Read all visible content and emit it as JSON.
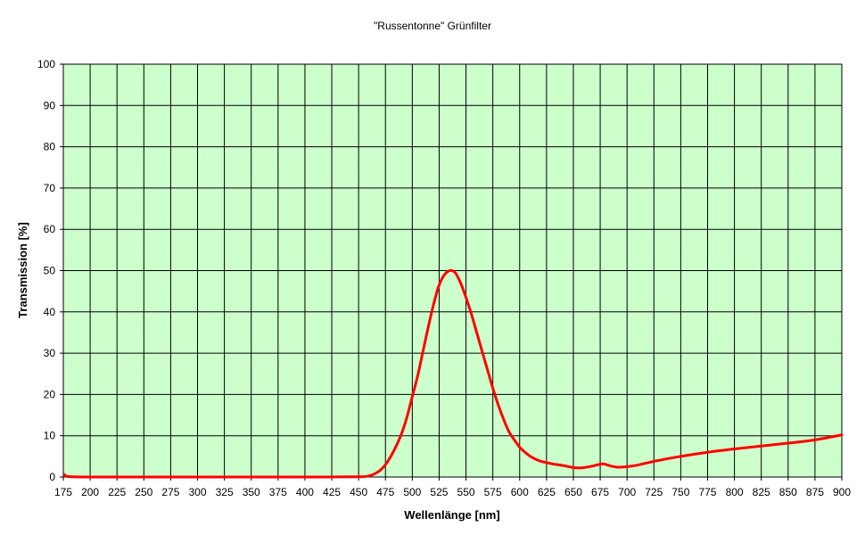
{
  "chart_data": {
    "type": "line",
    "title": "\"Russentonne\" Grünfilter",
    "xlabel": "Wellenlänge [nm]",
    "ylabel": "Transmission [%]",
    "xlim": [
      175,
      900
    ],
    "ylim": [
      0,
      100
    ],
    "x_ticks": [
      "175",
      "200",
      "225",
      "250",
      "275",
      "300",
      "325",
      "350",
      "375",
      "400",
      "425",
      "450",
      "475",
      "500",
      "525",
      "550",
      "575",
      "600",
      "625",
      "650",
      "675",
      "700",
      "725",
      "750",
      "775",
      "800",
      "825",
      "850",
      "875",
      "900"
    ],
    "y_ticks": [
      "0",
      "10",
      "20",
      "30",
      "40",
      "50",
      "60",
      "70",
      "80",
      "90",
      "100"
    ],
    "grid": true,
    "legend": "none",
    "colors": {
      "plot_background": "#ccffcc",
      "grid": "#000000",
      "series": "#ff0000"
    },
    "series": [
      {
        "x": [
          176,
          180,
          200,
          250,
          300,
          350,
          400,
          450,
          460,
          465,
          470,
          475,
          480,
          485,
          490,
          495,
          500,
          505,
          510,
          515,
          520,
          525,
          530,
          535,
          540,
          545,
          550,
          555,
          560,
          565,
          570,
          575,
          580,
          585,
          590,
          595,
          600,
          605,
          610,
          615,
          620,
          625,
          630,
          640,
          650,
          655,
          660,
          665,
          670,
          675,
          678,
          682,
          686,
          690,
          695,
          700,
          710,
          725,
          750,
          775,
          800,
          825,
          850,
          875,
          900
        ],
        "values": [
          0.6,
          0.1,
          0,
          0,
          0,
          0,
          0,
          0.05,
          0.3,
          0.8,
          1.6,
          3.0,
          5.0,
          7.5,
          10.5,
          14.5,
          19.5,
          24.5,
          30.5,
          36.5,
          42.0,
          46.5,
          49.0,
          50.0,
          49.5,
          47.0,
          43.5,
          39.5,
          35.0,
          30.5,
          26.0,
          21.5,
          17.5,
          14.0,
          11.0,
          9.0,
          7.2,
          6.0,
          5.0,
          4.3,
          3.8,
          3.5,
          3.2,
          2.8,
          2.3,
          2.2,
          2.3,
          2.5,
          2.8,
          3.1,
          3.2,
          2.9,
          2.6,
          2.4,
          2.4,
          2.5,
          2.9,
          3.8,
          5.0,
          6.0,
          6.8,
          7.5,
          8.2,
          9.0,
          10.2
        ]
      }
    ]
  }
}
